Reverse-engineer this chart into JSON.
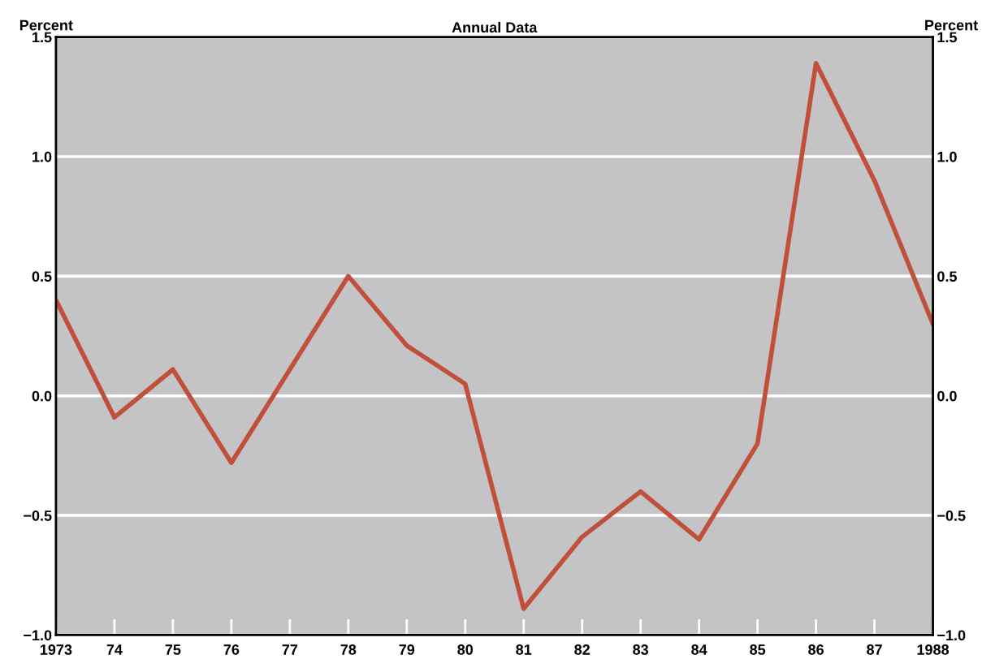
{
  "chart_data": {
    "type": "line",
    "title": "Annual Data",
    "ylabel": "Percent",
    "y2label": "Percent",
    "x": [
      1973,
      1974,
      1975,
      1976,
      1977,
      1978,
      1979,
      1980,
      1981,
      1982,
      1983,
      1984,
      1985,
      1986,
      1987,
      1988
    ],
    "series": [
      {
        "color": "#c0503a",
        "values": [
          0.4,
          -0.09,
          0.11,
          -0.28,
          0.11,
          0.5,
          0.21,
          0.05,
          -0.89,
          -0.59,
          -0.4,
          -0.6,
          -0.2,
          1.39,
          0.9,
          0.3
        ]
      }
    ],
    "xlim": [
      1973,
      1988
    ],
    "xticks": [
      {
        "value": 1973,
        "label": "1973"
      },
      {
        "value": 1974,
        "label": "74"
      },
      {
        "value": 1975,
        "label": "75"
      },
      {
        "value": 1976,
        "label": "76"
      },
      {
        "value": 1977,
        "label": "77"
      },
      {
        "value": 1978,
        "label": "78"
      },
      {
        "value": 1979,
        "label": "79"
      },
      {
        "value": 1980,
        "label": "80"
      },
      {
        "value": 1981,
        "label": "81"
      },
      {
        "value": 1982,
        "label": "82"
      },
      {
        "value": 1983,
        "label": "83"
      },
      {
        "value": 1984,
        "label": "84"
      },
      {
        "value": 1985,
        "label": "85"
      },
      {
        "value": 1986,
        "label": "86"
      },
      {
        "value": 1987,
        "label": "87"
      },
      {
        "value": 1988,
        "label": "1988"
      }
    ],
    "ylim": [
      -1.0,
      1.5
    ],
    "yticks": [
      {
        "value": -1.0,
        "label": "−1.0"
      },
      {
        "value": -0.5,
        "label": "−0.5"
      },
      {
        "value": 0,
        "label": "0.0"
      },
      {
        "value": 0.5,
        "label": "0.5"
      },
      {
        "value": 1.0,
        "label": "1.0"
      },
      {
        "value": 1.5,
        "label": "1.5"
      }
    ],
    "y2lim": [
      -1.0,
      1.5
    ],
    "y2ticks": [
      {
        "value": -1.0,
        "label": "−1.0"
      },
      {
        "value": -0.5,
        "label": "−0.5"
      },
      {
        "value": 0,
        "label": "0.0"
      },
      {
        "value": 0.5,
        "label": "0.5"
      },
      {
        "value": 1.0,
        "label": "1.0"
      },
      {
        "value": 1.5,
        "label": "1.5"
      }
    ],
    "grid": "y",
    "marker": "none",
    "line_style": "solid"
  }
}
